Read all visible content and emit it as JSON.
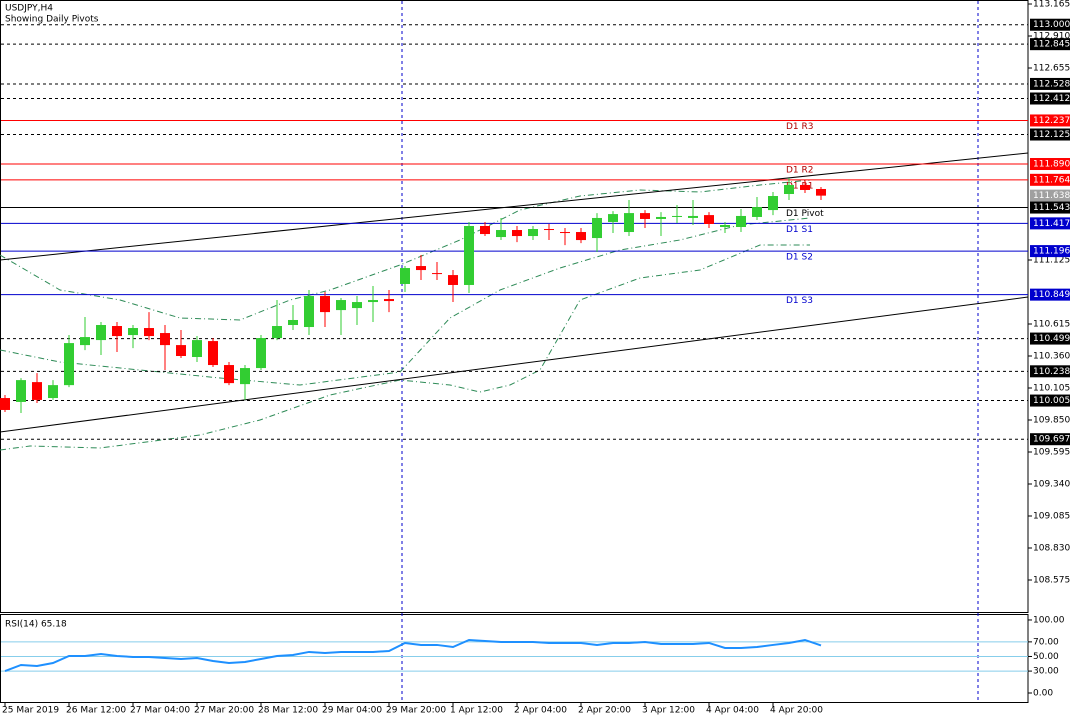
{
  "chart_data": {
    "type": "candlestick",
    "title": "USDJPY,H4",
    "subtitle": "Showing Daily Pivots",
    "categories": [
      "25 Mar 2019",
      null,
      null,
      null,
      "26 Mar 12:00",
      null,
      null,
      null,
      "27 Mar 04:00",
      null,
      null,
      null,
      "27 Mar 20:00",
      null,
      null,
      null,
      "28 Mar 12:00",
      null,
      null,
      null,
      "29 Mar 04:00",
      null,
      null,
      null,
      "29 Mar 20:00",
      null,
      null,
      null,
      "1 Apr 12:00",
      null,
      null,
      null,
      "2 Apr 04:00",
      null,
      null,
      null,
      "2 Apr 20:00",
      null,
      null,
      null,
      "3 Apr 12:00",
      null,
      null,
      null,
      "4 Apr 04:00",
      null,
      null,
      null,
      "4 Apr 20:00",
      null,
      null,
      null
    ],
    "open": [
      110.025,
      109.994,
      110.152,
      110.025,
      110.128,
      110.447,
      110.487,
      110.599,
      110.527,
      110.583,
      110.543,
      110.447,
      110.352,
      110.479,
      110.288,
      110.136,
      110.264,
      110.503,
      110.607,
      110.591,
      110.838,
      110.726,
      110.742,
      110.79,
      110.814,
      110.934,
      111.077,
      111.021,
      111.005,
      110.926,
      111.396,
      111.308,
      111.364,
      111.316,
      111.372,
      111.348,
      111.348,
      111.3,
      111.428,
      111.348,
      111.499,
      111.452,
      111.468,
      111.46,
      111.483,
      111.388,
      111.388,
      111.468,
      111.523,
      111.651,
      111.723,
      111.691
    ],
    "high": [
      110.049,
      110.184,
      110.224,
      110.168,
      110.527,
      110.671,
      110.631,
      110.631,
      110.607,
      110.71,
      110.607,
      110.567,
      110.519,
      110.503,
      110.312,
      110.288,
      110.527,
      110.806,
      110.766,
      110.886,
      110.87,
      110.822,
      110.838,
      110.918,
      110.886,
      111.077,
      111.165,
      111.109,
      111.045,
      111.428,
      111.428,
      111.46,
      111.396,
      111.396,
      111.412,
      111.38,
      111.38,
      111.499,
      111.515,
      111.603,
      111.523,
      111.507,
      111.563,
      111.603,
      111.507,
      111.428,
      111.531,
      111.627,
      111.667,
      111.778,
      111.763,
      111.707
    ],
    "low": [
      109.914,
      109.906,
      109.986,
      110.01,
      110.112,
      110.407,
      110.368,
      110.392,
      110.423,
      110.487,
      110.248,
      110.344,
      110.312,
      110.272,
      110.128,
      110.01,
      110.248,
      110.487,
      110.567,
      110.527,
      110.591,
      110.527,
      110.607,
      110.631,
      110.71,
      110.87,
      110.966,
      110.966,
      110.79,
      110.862,
      111.316,
      111.284,
      111.268,
      111.284,
      111.284,
      111.244,
      111.26,
      111.189,
      111.34,
      111.316,
      111.38,
      111.316,
      111.42,
      111.404,
      111.38,
      111.34,
      111.348,
      111.444,
      111.483,
      111.603,
      111.659,
      111.603
    ],
    "close": [
      109.93,
      110.168,
      110.01,
      110.128,
      110.463,
      110.511,
      110.607,
      110.519,
      110.583,
      110.519,
      110.447,
      110.36,
      110.487,
      110.288,
      110.144,
      110.264,
      110.503,
      110.599,
      110.647,
      110.838,
      110.71,
      110.806,
      110.79,
      110.806,
      110.798,
      111.061,
      111.045,
      111.013,
      110.926,
      111.396,
      111.332,
      111.364,
      111.316,
      111.372,
      111.364,
      111.34,
      111.284,
      111.46,
      111.491,
      111.499,
      111.452,
      111.468,
      111.476,
      111.476,
      111.412,
      111.404,
      111.476,
      111.547,
      111.635,
      111.723,
      111.683,
      111.638
    ],
    "up_color": "#32cd32",
    "down_color": "#ff0000",
    "ylim": [
      108.32,
      113.197
    ],
    "yticks": [
      {
        "value": 113.165,
        "label": "113.165"
      },
      {
        "value": 112.91,
        "label": "112.910"
      },
      {
        "value": 112.655,
        "label": "112.655"
      },
      {
        "value": 111.125,
        "label": "111.125"
      },
      {
        "value": 110.615,
        "label": "110.615"
      },
      {
        "value": 110.36,
        "label": "110.360"
      },
      {
        "value": 110.105,
        "label": "110.105"
      },
      {
        "value": 109.85,
        "label": "109.850"
      },
      {
        "value": 109.595,
        "label": "109.595"
      },
      {
        "value": 109.34,
        "label": "109.340"
      },
      {
        "value": 109.085,
        "label": "109.085"
      },
      {
        "value": 108.83,
        "label": "108.830"
      },
      {
        "value": 108.575,
        "label": "108.575"
      }
    ],
    "levels": [
      {
        "value": 113,
        "label": "113.000",
        "color": "#000000",
        "style": "dashed"
      },
      {
        "value": 112.845,
        "label": "112.845",
        "color": "#000000",
        "style": "dashed"
      },
      {
        "value": 112.528,
        "label": "112.528",
        "color": "#000000",
        "style": "dashed"
      },
      {
        "value": 112.412,
        "label": "112.412",
        "color": "#000000",
        "style": "dashed"
      },
      {
        "value": 112.237,
        "label": "112.237",
        "name": "D1 R3",
        "color": "#ff0000",
        "style": "solid"
      },
      {
        "value": 112.125,
        "label": "112.125",
        "color": "#000000",
        "style": "dashed"
      },
      {
        "value": 111.89,
        "label": "111.890",
        "name": "D1 R2",
        "color": "#ff0000",
        "style": "solid"
      },
      {
        "value": 111.764,
        "label": "111.764",
        "name": "D1 R1",
        "color": "#ff0000",
        "style": "solid"
      },
      {
        "value": 111.638,
        "label": "111.638",
        "color": "#a0a0a0",
        "style": "none"
      },
      {
        "value": 111.543,
        "label": "111.543",
        "name": "D1 Pivot",
        "color": "#000000",
        "style": "solid"
      },
      {
        "value": 111.417,
        "label": "111.417",
        "name": "D1 S1",
        "color": "#0000cd",
        "style": "solid"
      },
      {
        "value": 111.196,
        "label": "111.196",
        "name": "D1 S2",
        "color": "#0000cd",
        "style": "solid"
      },
      {
        "value": 110.849,
        "label": "110.849",
        "name": "D1 S3",
        "color": "#0000cd",
        "style": "solid"
      },
      {
        "value": 110.499,
        "label": "110.499",
        "color": "#000000",
        "style": "dashed"
      },
      {
        "value": 110.238,
        "label": "110.238",
        "color": "#000000",
        "style": "dashed"
      },
      {
        "value": 110.005,
        "label": "110.005",
        "color": "#000000",
        "style": "dashed"
      },
      {
        "value": 109.697,
        "label": "109.697",
        "color": "#000000",
        "style": "dashed"
      }
    ],
    "rsi": {
      "title": "RSI(14) 65.18",
      "color": "#1e90ff",
      "values": [
        30.1,
        38.4,
        37.0,
        41.1,
        50.7,
        50.7,
        53.4,
        50.7,
        49.3,
        49.3,
        47.9,
        46.6,
        47.9,
        43.8,
        41.1,
        42.5,
        46.6,
        50.7,
        52.1,
        56.2,
        54.8,
        56.2,
        56.2,
        56.2,
        57.5,
        68.5,
        65.8,
        65.8,
        63.0,
        72.6,
        71.2,
        69.9,
        69.9,
        69.9,
        68.5,
        68.5,
        68.5,
        65.8,
        68.5,
        68.5,
        69.9,
        67.1,
        67.1,
        67.1,
        68.5,
        61.6,
        61.6,
        63.0,
        65.8,
        68.5,
        72.6,
        65.18
      ],
      "ylim": [
        -13.7,
        106.8
      ],
      "yticks": [
        {
          "value": 100,
          "label": "100.00"
        },
        {
          "value": 70,
          "label": "70.00"
        },
        {
          "value": 50,
          "label": "50.00"
        },
        {
          "value": 30,
          "label": "30.00"
        },
        {
          "value": 0,
          "label": "0.00"
        }
      ],
      "levels": [
        70,
        50,
        30
      ]
    }
  }
}
